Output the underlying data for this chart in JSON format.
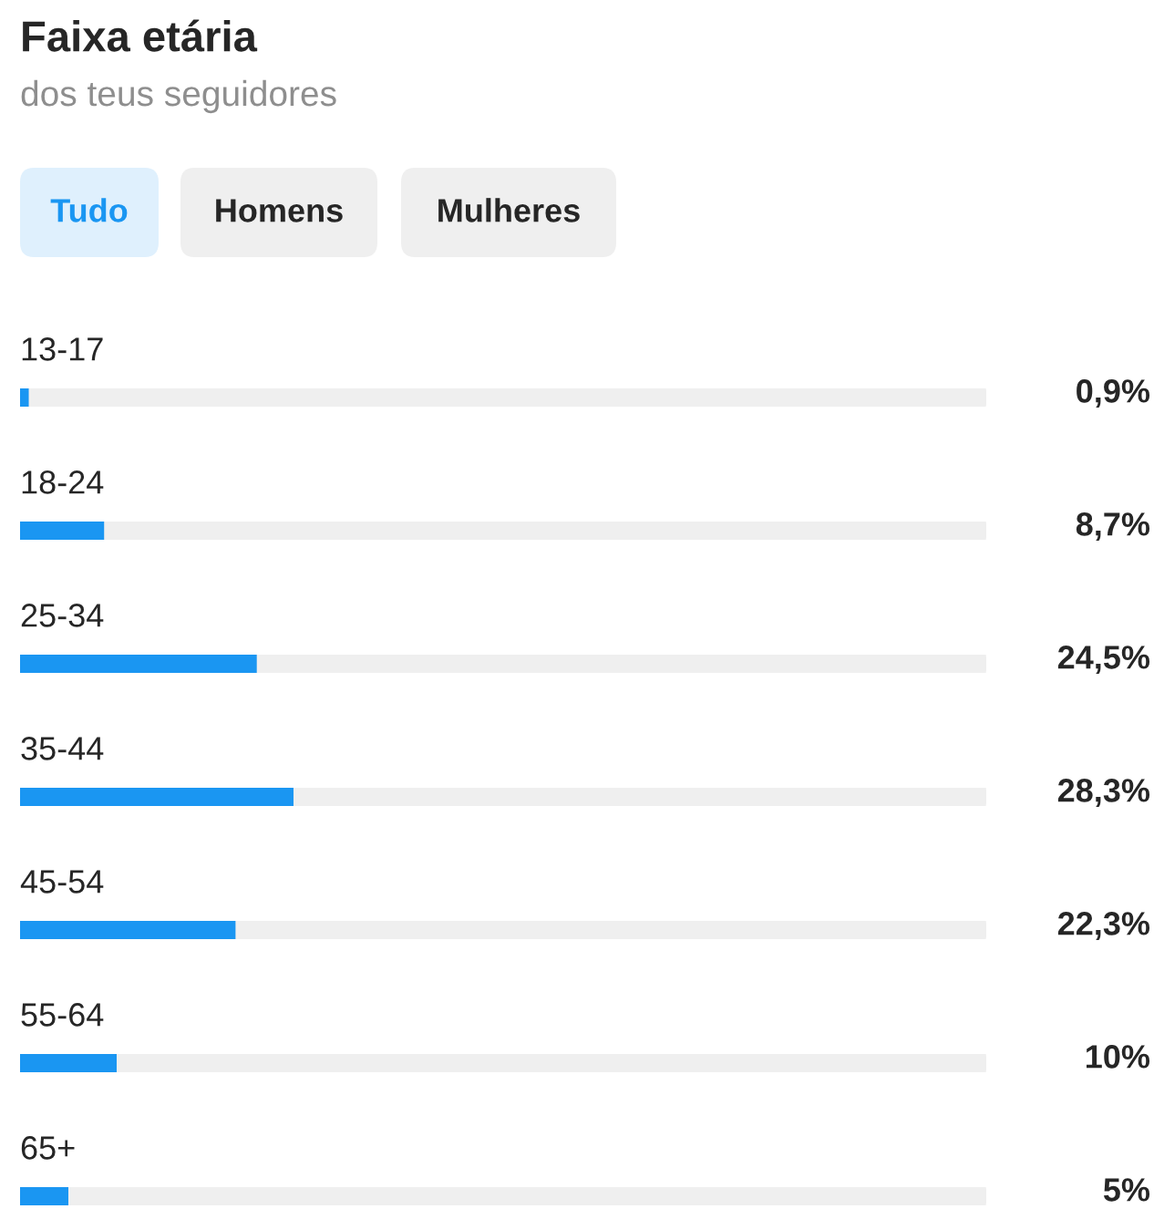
{
  "chart_data": {
    "type": "bar",
    "orientation": "horizontal",
    "title": "Faixa etária",
    "subtitle": "dos teus seguidores",
    "annotations": [
      "Tudo",
      "Homens",
      "Mulheres"
    ],
    "categories": [
      "13-17",
      "18-24",
      "25-34",
      "35-44",
      "45-54",
      "55-64",
      "65+"
    ],
    "values": [
      0.9,
      8.7,
      24.5,
      28.3,
      22.3,
      10,
      5
    ],
    "value_labels": [
      "0,9%",
      "8,7%",
      "24,5%",
      "28,3%",
      "22,3%",
      "10%",
      "5%"
    ],
    "color": "#1a96f2",
    "xlim": [
      0,
      100
    ]
  }
}
